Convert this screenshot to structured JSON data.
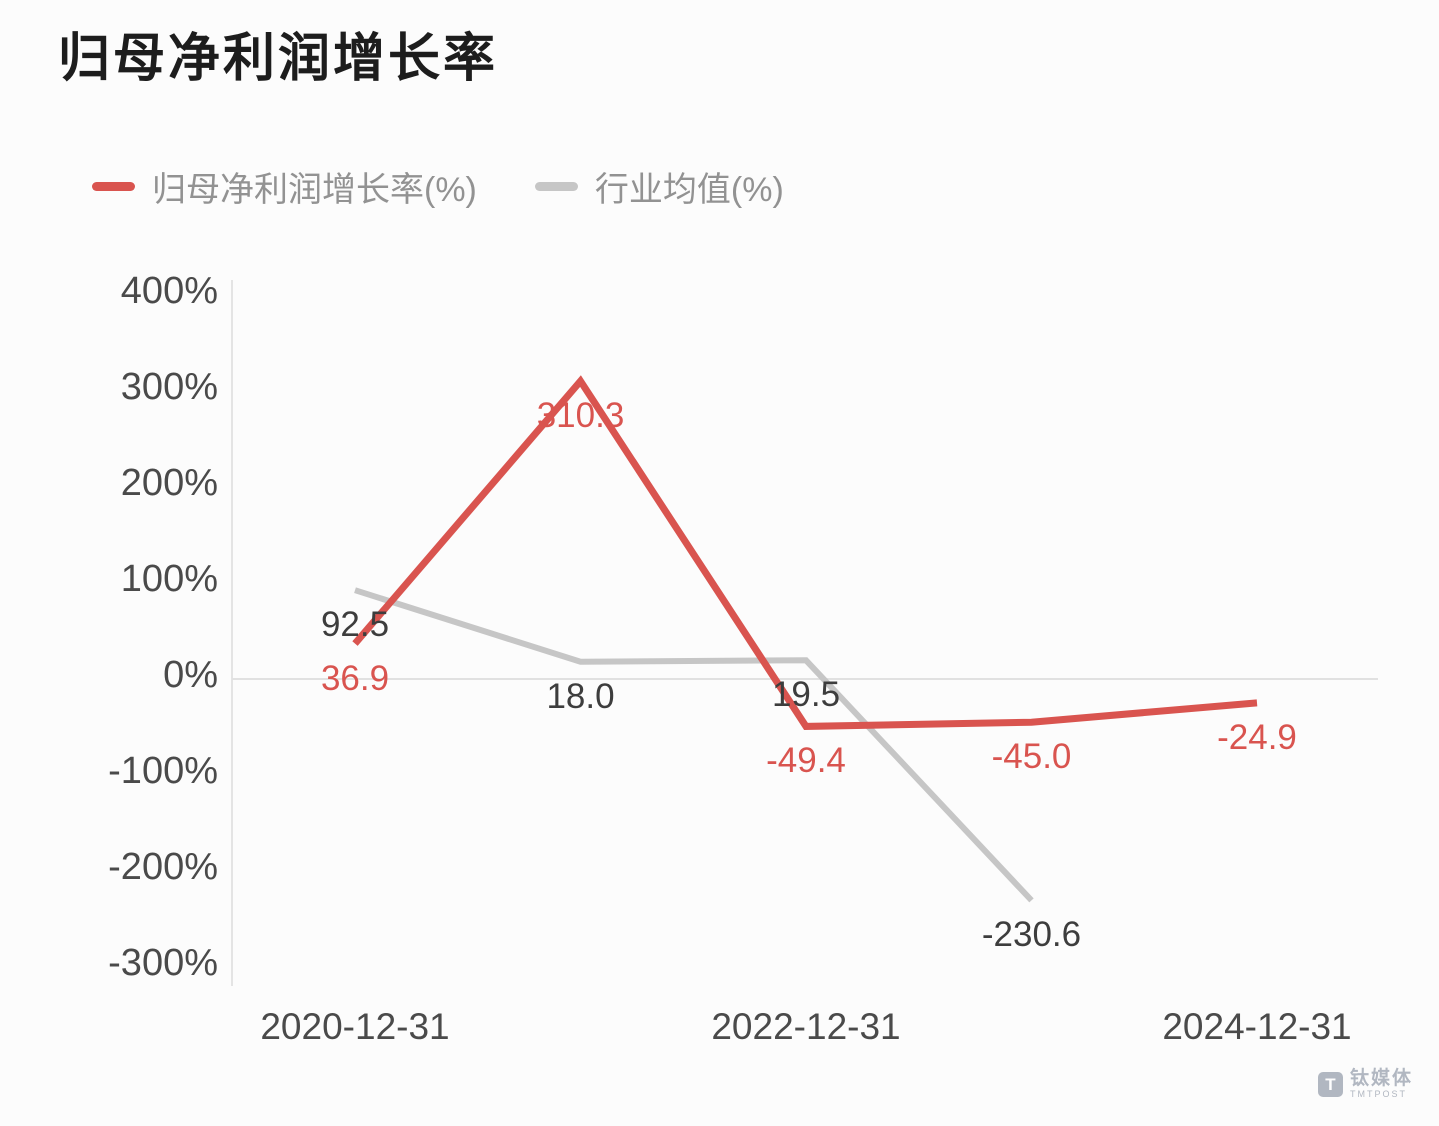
{
  "chart_data": {
    "type": "line",
    "title": "归母净利润增长率",
    "x_point_count": 5,
    "x_ticks": [
      {
        "index": 0,
        "label": "2020-12-31"
      },
      {
        "index": 2,
        "label": "2022-12-31"
      },
      {
        "index": 4,
        "label": "2024-12-31"
      }
    ],
    "series": [
      {
        "name": "归母净利润增长率(%)",
        "color": "#d9544f",
        "label_color": "#d9544f",
        "values": [
          36.9,
          310.3,
          -49.4,
          -45.0,
          -24.9
        ]
      },
      {
        "name": "行业均值(%)",
        "color": "#c6c6c6",
        "label_color": "#3d3d3d",
        "values": [
          92.5,
          18.0,
          19.5,
          -230.6,
          null
        ]
      }
    ],
    "ylim": [
      -300,
      400
    ],
    "ytick_step": 100,
    "ytick_suffix": "%",
    "grid": "zero-line-only",
    "legend_position": "top-left"
  },
  "watermark": {
    "logo_letter": "T",
    "brand": "钛媒体",
    "subbrand": "TMTPOST"
  }
}
